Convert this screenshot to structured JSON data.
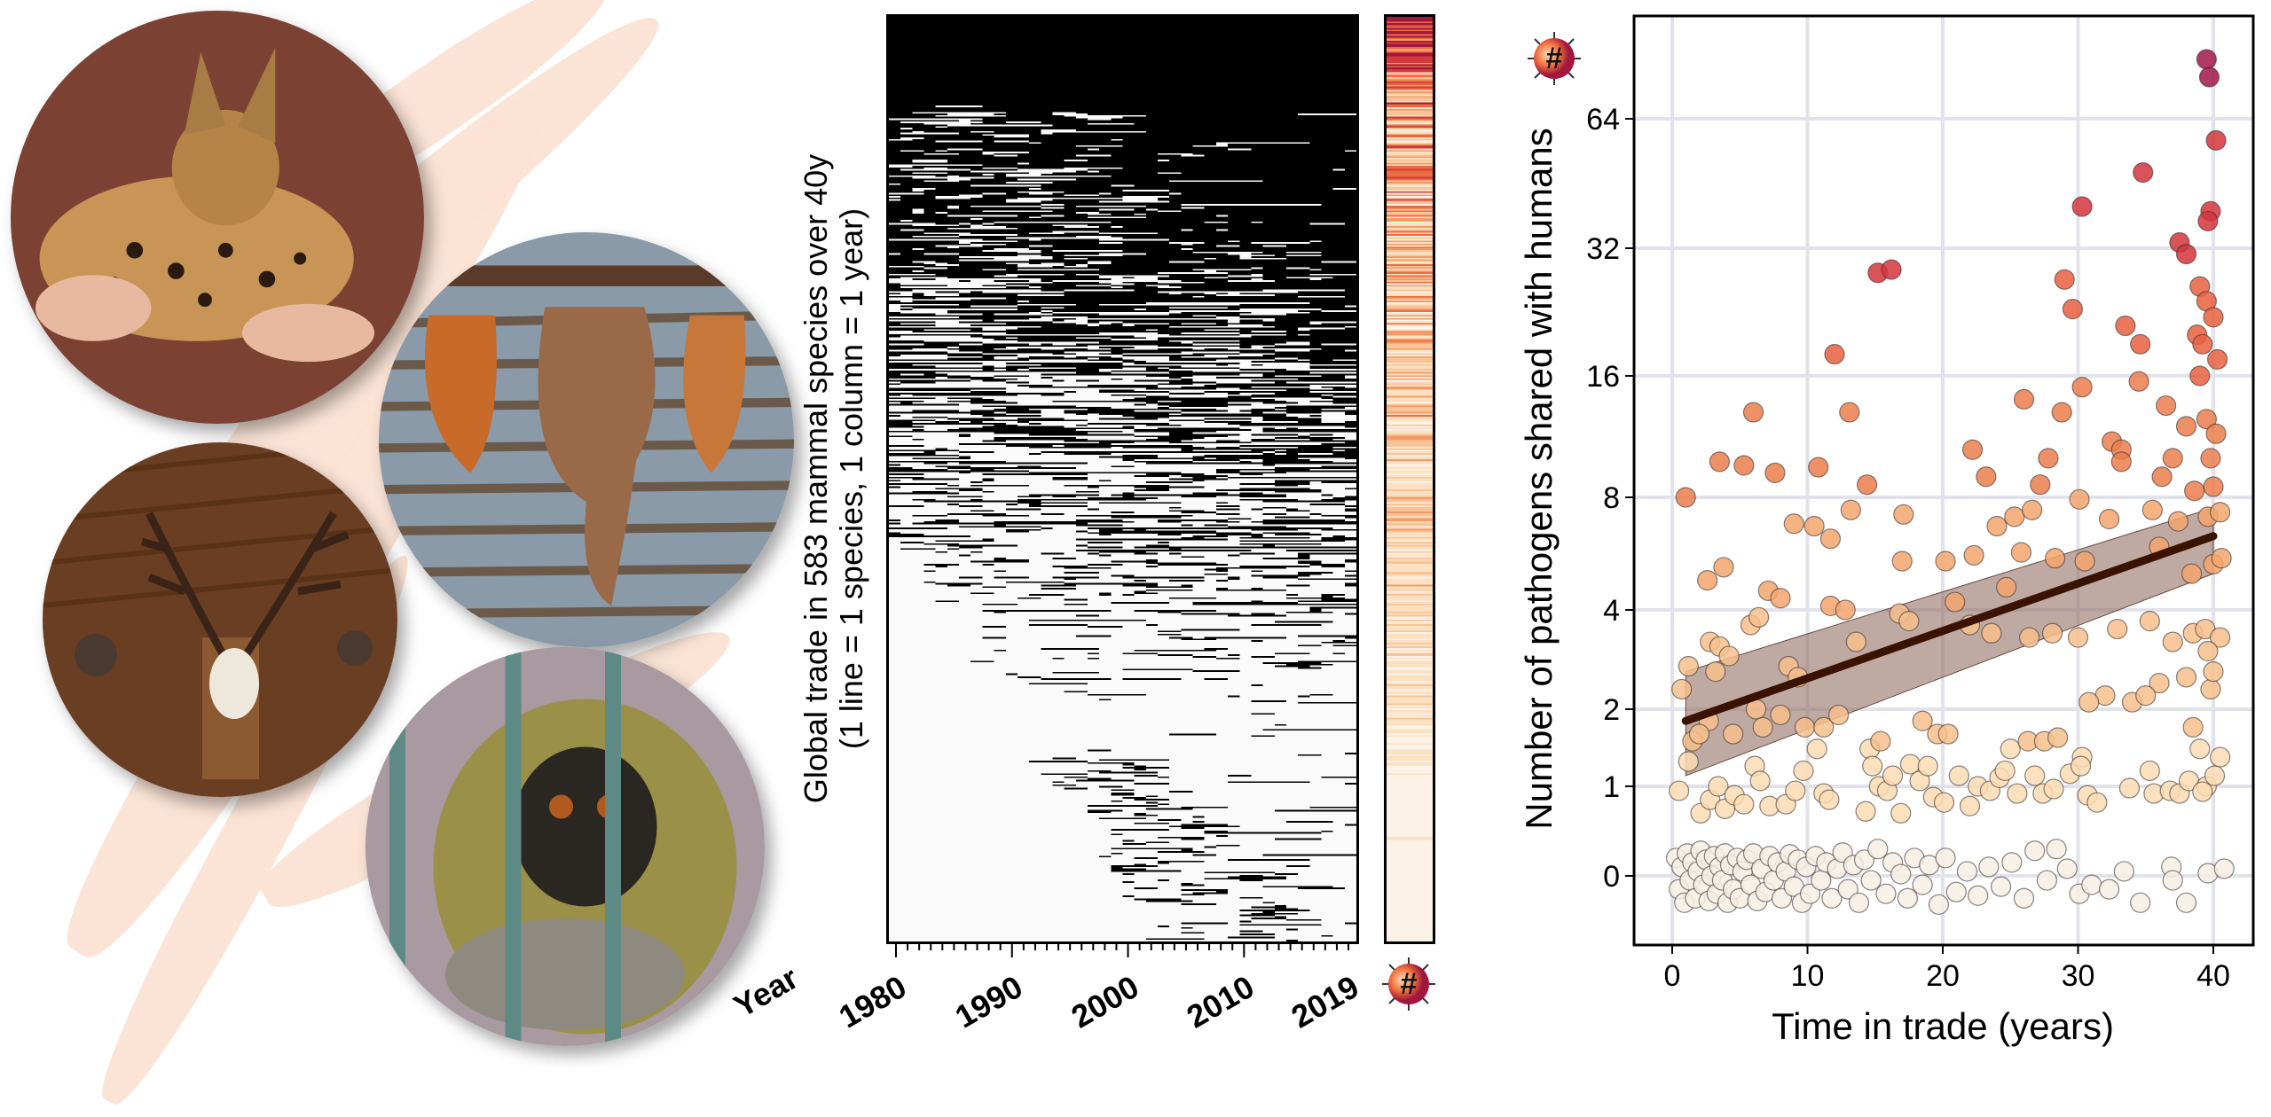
{
  "legend_symbol": "#",
  "colors": {
    "zero": "#f6efe4",
    "low": "#fbdcb4",
    "mid": "#f3a66f",
    "high": "#e8603e",
    "very_high": "#d2353c",
    "max": "#a2174a",
    "trend": "#3a1200",
    "band": "#8a6558"
  },
  "chart_data": [
    {
      "type": "heatmap",
      "title": "",
      "ylabel_line1": "Global trade in 583 mammal species over 40y",
      "ylabel_line2": "(1 line = 1 species, 1 column = 1 year)",
      "xlabel": "Year",
      "rows": 583,
      "year_range": [
        1980,
        2019
      ],
      "x_tick_labels": [
        "1980",
        "1990",
        "2000",
        "2010",
        "2019"
      ],
      "cell_values": [
        "traded (black)",
        "not traded (white)"
      ],
      "side_colorbar": "Number of pathogens shared with humans per species (#)"
    },
    {
      "type": "scatter",
      "xlabel": "Time in trade (years)",
      "ylabel": "Number of pathogens shared with humans",
      "x_ticks": [
        0,
        10,
        20,
        30,
        40
      ],
      "y_ticks": [
        0,
        1,
        2,
        4,
        8,
        16,
        32,
        64
      ],
      "x_tick_labels": [
        "0",
        "10",
        "20",
        "30",
        "40"
      ],
      "y_tick_labels": [
        "0",
        "1",
        "2",
        "4",
        "8",
        "16",
        "32",
        "64"
      ],
      "xlim": [
        -1,
        41.5
      ],
      "ylim": [
        -0.6,
        100
      ],
      "y_scale": "log-like",
      "grid": true,
      "trend": {
        "x": [
          1,
          40
        ],
        "y": [
          1.8,
          6.3
        ],
        "ci_lower": [
          1.1,
          5.0
        ],
        "ci_upper": [
          2.6,
          7.5
        ]
      },
      "points": [
        [
          39.5,
          88
        ],
        [
          39.7,
          80
        ],
        [
          40.2,
          57
        ],
        [
          30.3,
          40
        ],
        [
          34.8,
          48
        ],
        [
          15.2,
          28
        ],
        [
          16.2,
          28.5
        ],
        [
          29,
          27
        ],
        [
          29.6,
          23
        ],
        [
          33.5,
          21
        ],
        [
          34.6,
          19
        ],
        [
          39.8,
          39
        ],
        [
          39.6,
          37
        ],
        [
          12,
          18
        ],
        [
          37.5,
          33
        ],
        [
          38,
          31
        ],
        [
          39,
          26
        ],
        [
          39.5,
          24
        ],
        [
          40,
          22
        ],
        [
          38.8,
          20
        ],
        [
          39.2,
          19
        ],
        [
          40.3,
          17.5
        ],
        [
          39,
          16
        ],
        [
          30.3,
          15
        ],
        [
          34.5,
          15.5
        ],
        [
          26,
          14
        ],
        [
          28.8,
          13
        ],
        [
          36.5,
          13.5
        ],
        [
          6,
          13
        ],
        [
          13.1,
          13
        ],
        [
          38,
          12
        ],
        [
          39.5,
          12.5
        ],
        [
          40.2,
          11.5
        ],
        [
          32.5,
          11
        ],
        [
          33.2,
          10.5
        ],
        [
          22.2,
          10.5
        ],
        [
          27.8,
          10
        ],
        [
          3.5,
          9.8
        ],
        [
          5.3,
          9.6
        ],
        [
          10.8,
          9.5
        ],
        [
          7.6,
          9.2
        ],
        [
          23.2,
          9
        ],
        [
          33.2,
          9.8
        ],
        [
          37,
          10
        ],
        [
          39.8,
          10
        ],
        [
          36.2,
          9
        ],
        [
          27.2,
          8.6
        ],
        [
          14.4,
          8.6
        ],
        [
          1,
          8
        ],
        [
          40,
          8.5
        ],
        [
          38.6,
          8.3
        ],
        [
          13.2,
          7.4
        ],
        [
          17.1,
          7.2
        ],
        [
          9,
          6.8
        ],
        [
          10.5,
          6.7
        ],
        [
          11.7,
          6.2
        ],
        [
          24,
          6.7
        ],
        [
          25.3,
          7.1
        ],
        [
          26.6,
          7.4
        ],
        [
          30.1,
          7.9
        ],
        [
          32.3,
          7
        ],
        [
          35.5,
          7.4
        ],
        [
          37.4,
          6.9
        ],
        [
          39.6,
          7.1
        ],
        [
          40.5,
          7.3
        ],
        [
          3.8,
          5.2
        ],
        [
          2.6,
          4.8
        ],
        [
          7.1,
          4.5
        ],
        [
          8,
          4.3
        ],
        [
          17,
          5.4
        ],
        [
          20.2,
          5.4
        ],
        [
          22.3,
          5.6
        ],
        [
          25.8,
          5.7
        ],
        [
          28.3,
          5.5
        ],
        [
          30.5,
          5.4
        ],
        [
          36,
          5.9
        ],
        [
          38.4,
          5
        ],
        [
          40,
          5.3
        ],
        [
          40.6,
          5.5
        ],
        [
          11.7,
          4.1
        ],
        [
          12.8,
          4
        ],
        [
          16.8,
          3.9
        ],
        [
          20.9,
          4.2
        ],
        [
          24.7,
          4.6
        ],
        [
          5.8,
          3.6
        ],
        [
          6.4,
          3.8
        ],
        [
          2.8,
          3.2
        ],
        [
          3.5,
          3.1
        ],
        [
          4.2,
          2.9
        ],
        [
          1.2,
          2.7
        ],
        [
          3.2,
          2.6
        ],
        [
          8.6,
          2.7
        ],
        [
          9.3,
          2.5
        ],
        [
          13.6,
          3.2
        ],
        [
          17.5,
          3.7
        ],
        [
          22,
          3.6
        ],
        [
          23.6,
          3.4
        ],
        [
          26.4,
          3.3
        ],
        [
          28.1,
          3.4
        ],
        [
          30,
          3.3
        ],
        [
          32.9,
          3.5
        ],
        [
          35.3,
          3.7
        ],
        [
          37,
          3.2
        ],
        [
          38.5,
          3.4
        ],
        [
          39.4,
          3.5
        ],
        [
          40.5,
          3.3
        ],
        [
          39.6,
          3
        ],
        [
          36,
          2.4
        ],
        [
          34,
          2.1
        ],
        [
          32,
          2.2
        ],
        [
          30.8,
          2.1
        ],
        [
          39.8,
          2.3
        ],
        [
          35,
          2.2
        ],
        [
          40,
          2.6
        ],
        [
          38,
          2.5
        ],
        [
          0.7,
          2.3
        ],
        [
          6.2,
          2
        ],
        [
          8,
          1.9
        ],
        [
          2.7,
          1.8
        ],
        [
          9.8,
          1.7
        ],
        [
          11.2,
          1.7
        ],
        [
          12.3,
          1.9
        ],
        [
          6.7,
          1.7
        ],
        [
          4.5,
          1.6
        ],
        [
          1.5,
          1.5
        ],
        [
          2,
          1.6
        ],
        [
          10.7,
          1.4
        ],
        [
          18.5,
          1.8
        ],
        [
          14.6,
          1.4
        ],
        [
          15.4,
          1.5
        ],
        [
          19.6,
          1.6
        ],
        [
          20.4,
          1.6
        ],
        [
          25,
          1.4
        ],
        [
          26.3,
          1.5
        ],
        [
          27.5,
          1.5
        ],
        [
          28.5,
          1.55
        ],
        [
          30.3,
          1.3
        ],
        [
          39,
          1.4
        ],
        [
          40.5,
          1.3
        ],
        [
          38.5,
          1.7
        ],
        [
          0.5,
          0.95
        ],
        [
          1.2,
          1.25
        ],
        [
          2.1,
          0.7
        ],
        [
          2.8,
          0.85
        ],
        [
          3.4,
          1.0
        ],
        [
          3.9,
          0.75
        ],
        [
          4.6,
          0.9
        ],
        [
          5.3,
          0.8
        ],
        [
          6.1,
          1.2
        ],
        [
          6.5,
          1.05
        ],
        [
          7.2,
          0.78
        ],
        [
          8.4,
          0.8
        ],
        [
          9.1,
          0.95
        ],
        [
          9.7,
          1.15
        ],
        [
          11.2,
          0.92
        ],
        [
          11.6,
          0.85
        ],
        [
          14.3,
          0.72
        ],
        [
          14.8,
          1.2
        ],
        [
          15.3,
          1.0
        ],
        [
          15.9,
          0.95
        ],
        [
          16.3,
          1.1
        ],
        [
          16.9,
          0.7
        ],
        [
          17.6,
          1.22
        ],
        [
          18.3,
          1.05
        ],
        [
          18.9,
          1.2
        ],
        [
          19.3,
          0.88
        ],
        [
          20.1,
          0.82
        ],
        [
          21.2,
          1.1
        ],
        [
          22,
          0.78
        ],
        [
          22.6,
          1.0
        ],
        [
          23.5,
          0.95
        ],
        [
          24.2,
          1.08
        ],
        [
          24.6,
          1.15
        ],
        [
          25.5,
          0.92
        ],
        [
          26.8,
          1.1
        ],
        [
          27.4,
          0.92
        ],
        [
          28.2,
          0.97
        ],
        [
          29.4,
          1.12
        ],
        [
          30.2,
          1.2
        ],
        [
          30.7,
          0.9
        ],
        [
          31.4,
          0.82
        ],
        [
          33.8,
          0.98
        ],
        [
          35.3,
          1.15
        ],
        [
          35.6,
          0.92
        ],
        [
          36.8,
          0.95
        ],
        [
          37.5,
          0.92
        ],
        [
          38.2,
          1.05
        ],
        [
          39.5,
          1.0
        ],
        [
          40.1,
          1.1
        ],
        [
          39.2,
          0.94
        ],
        [
          0.3,
          0.2
        ],
        [
          0.5,
          -0.15
        ],
        [
          0.7,
          0.1
        ],
        [
          0.9,
          -0.3
        ],
        [
          1.1,
          0.25
        ],
        [
          1.3,
          -0.05
        ],
        [
          1.5,
          0.15
        ],
        [
          1.7,
          -0.25
        ],
        [
          1.9,
          0.05
        ],
        [
          2.1,
          0.28
        ],
        [
          2.3,
          -0.1
        ],
        [
          2.5,
          0.18
        ],
        [
          2.7,
          -0.28
        ],
        [
          2.9,
          0.0
        ],
        [
          3.1,
          0.22
        ],
        [
          3.3,
          -0.2
        ],
        [
          3.5,
          0.1
        ],
        [
          3.7,
          -0.05
        ],
        [
          3.9,
          0.25
        ],
        [
          4.1,
          -0.3
        ],
        [
          4.3,
          0.12
        ],
        [
          4.5,
          -0.15
        ],
        [
          4.8,
          0.2
        ],
        [
          5.0,
          -0.25
        ],
        [
          5.2,
          0.05
        ],
        [
          5.5,
          0.18
        ],
        [
          5.8,
          -0.1
        ],
        [
          6.0,
          0.25
        ],
        [
          6.3,
          -0.28
        ],
        [
          6.6,
          0.08
        ],
        [
          6.9,
          -0.18
        ],
        [
          7.2,
          0.22
        ],
        [
          7.5,
          -0.05
        ],
        [
          7.8,
          0.15
        ],
        [
          8.1,
          -0.25
        ],
        [
          8.4,
          0.05
        ],
        [
          8.7,
          0.24
        ],
        [
          9.0,
          -0.12
        ],
        [
          9.3,
          0.18
        ],
        [
          9.6,
          -0.3
        ],
        [
          9.9,
          0.1
        ],
        [
          10.2,
          -0.2
        ],
        [
          10.6,
          0.22
        ],
        [
          11.0,
          -0.05
        ],
        [
          11.4,
          0.15
        ],
        [
          11.8,
          -0.25
        ],
        [
          12.2,
          0.08
        ],
        [
          12.6,
          0.26
        ],
        [
          13.0,
          -0.15
        ],
        [
          13.4,
          0.12
        ],
        [
          13.8,
          -0.3
        ],
        [
          14.2,
          0.18
        ],
        [
          14.7,
          -0.05
        ],
        [
          15.2,
          0.3
        ],
        [
          15.8,
          -0.2
        ],
        [
          16.3,
          0.15
        ],
        [
          16.9,
          0.02
        ],
        [
          17.4,
          -0.25
        ],
        [
          17.9,
          0.2
        ],
        [
          18.5,
          -0.1
        ],
        [
          19.0,
          0.12
        ],
        [
          19.7,
          -0.32
        ],
        [
          20.2,
          0.2
        ],
        [
          21.0,
          -0.18
        ],
        [
          21.8,
          0.05
        ],
        [
          22.6,
          -0.22
        ],
        [
          23.4,
          0.1
        ],
        [
          24.3,
          -0.12
        ],
        [
          25.1,
          0.15
        ],
        [
          26.0,
          -0.25
        ],
        [
          26.8,
          0.28
        ],
        [
          27.7,
          -0.05
        ],
        [
          28.4,
          0.3
        ],
        [
          29.2,
          0.08
        ],
        [
          30.1,
          -0.2
        ],
        [
          31.0,
          -0.1
        ],
        [
          32.3,
          -0.15
        ],
        [
          33.4,
          0.05
        ],
        [
          34.6,
          -0.3
        ],
        [
          36.9,
          0.1
        ],
        [
          37.0,
          -0.05
        ],
        [
          38.0,
          -0.3
        ],
        [
          39.6,
          0.03
        ],
        [
          40.8,
          0.08
        ]
      ]
    }
  ]
}
